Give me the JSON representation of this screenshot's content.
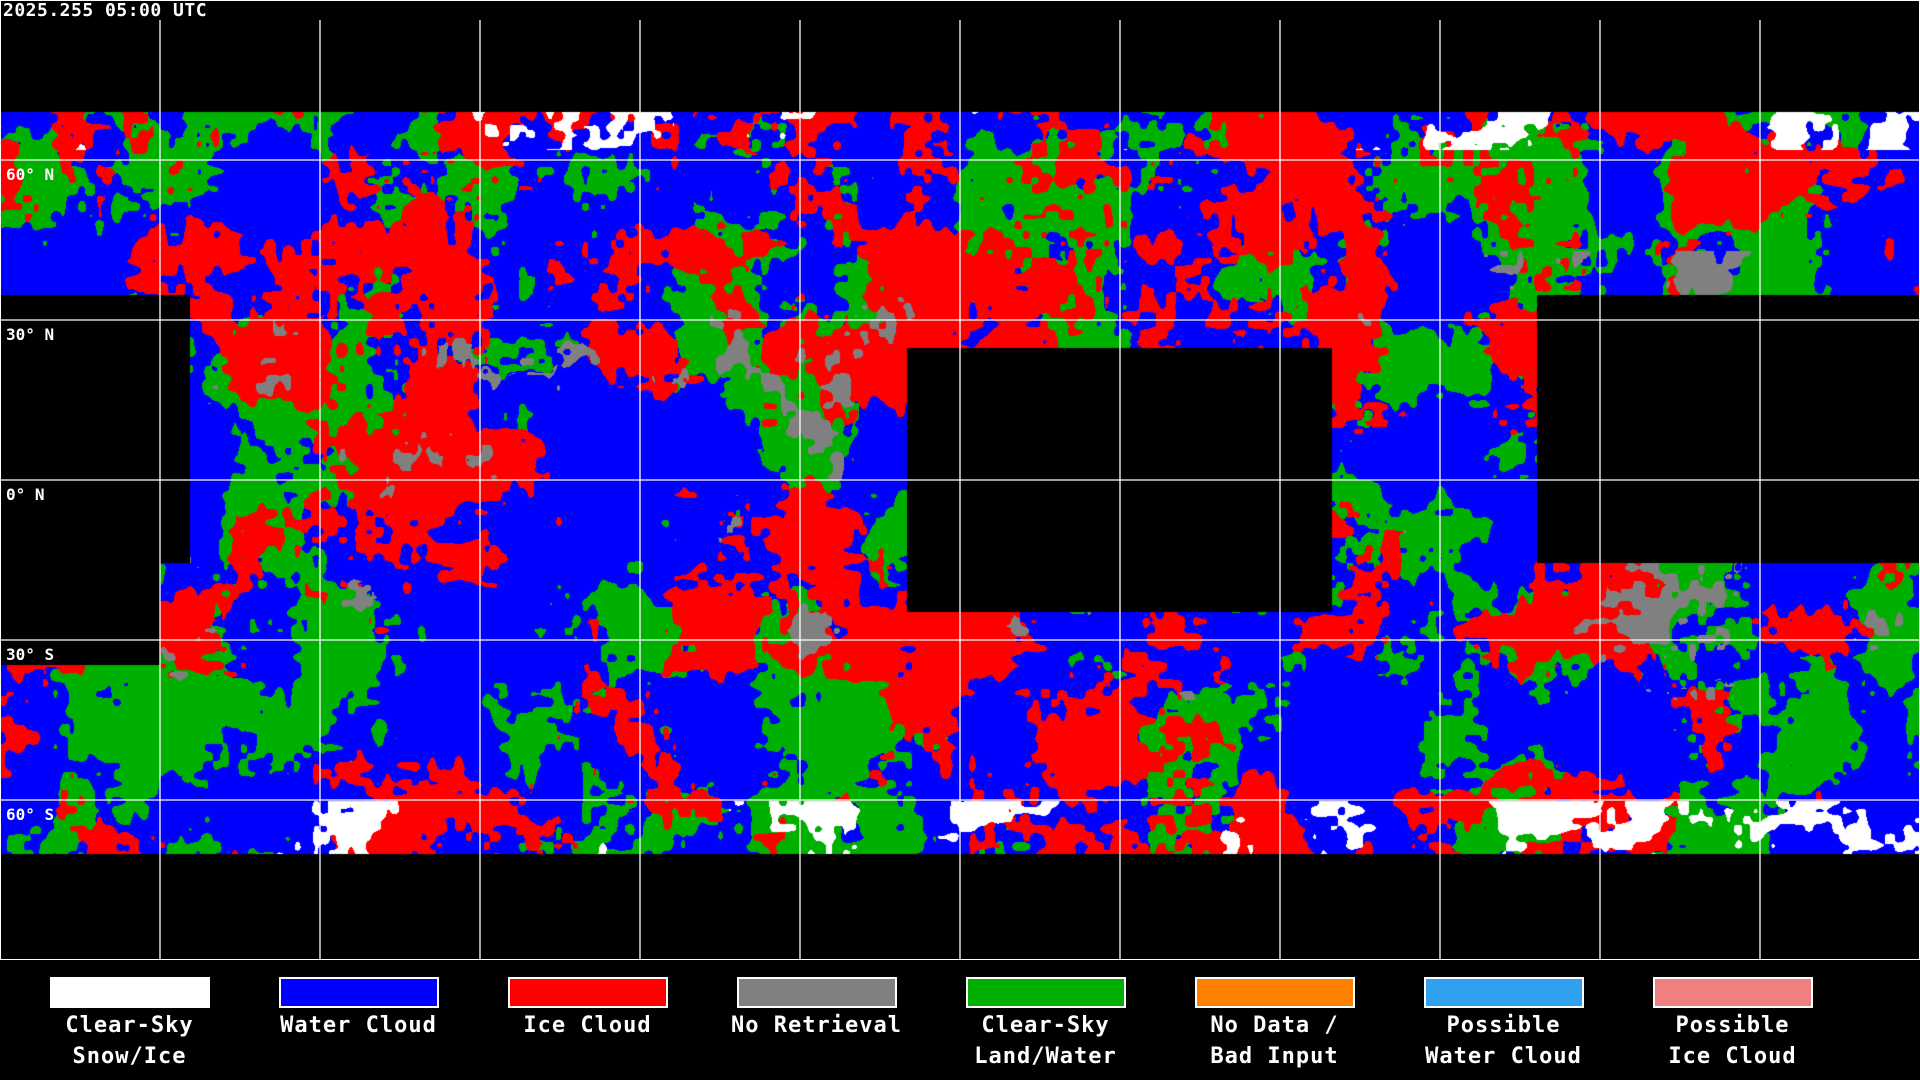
{
  "timestamp": "2025.255 05:00 UTC",
  "map": {
    "projection": "equirectangular",
    "gridlines_longitude_step_deg": 30,
    "gridlines_latitude_step_deg": 30,
    "lat_labels": [
      "60° N",
      "30° N",
      "0° N",
      "30° S",
      "60° S"
    ]
  },
  "legend": [
    {
      "line1": "Clear-Sky",
      "line2": "Snow/Ice",
      "color": "#ffffff"
    },
    {
      "line1": "Water Cloud",
      "line2": "",
      "color": "#0000ff"
    },
    {
      "line1": "Ice Cloud",
      "line2": "",
      "color": "#ff0000"
    },
    {
      "line1": "No Retrieval",
      "line2": "",
      "color": "#808080"
    },
    {
      "line1": "Clear-Sky",
      "line2": "Land/Water",
      "color": "#00b000"
    },
    {
      "line1": "No Data /",
      "line2": "Bad Input",
      "color": "#ff8000"
    },
    {
      "line1": "Possible",
      "line2": "Water Cloud",
      "color": "#30a0f0"
    },
    {
      "line1": "Possible",
      "line2": "Ice Cloud",
      "color": "#f08080"
    }
  ]
}
